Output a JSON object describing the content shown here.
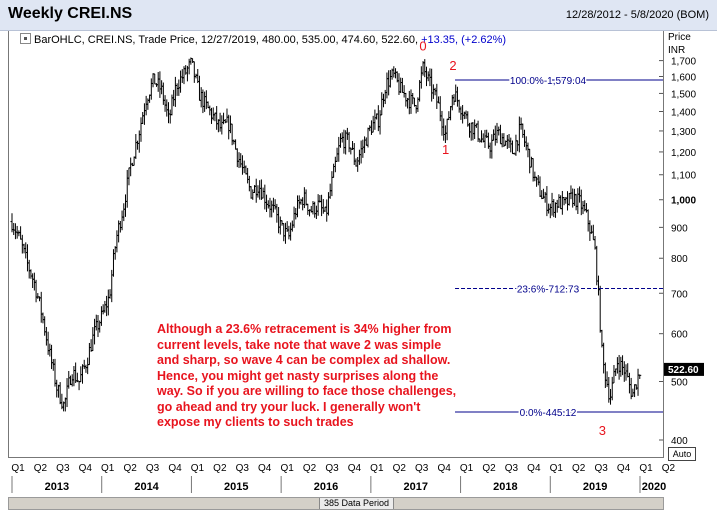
{
  "header": {
    "title": "Weekly CREI.NS",
    "date_range": "12/28/2012 - 5/8/2020 (BOM)"
  },
  "legend": {
    "prefix": "BarOHLC, CREI.NS, Trade Price, 12/27/2019, 480.00, 535.00, 474.60, 522.60, ",
    "change": "+13.35, (+2.62%)"
  },
  "axis": {
    "price_label": "Price",
    "currency_label": "INR",
    "auto_label": "Auto",
    "period_label": "385 Data Period"
  },
  "commentary": "Although a 23.6% retracement is 34% higher from current levels, take note that wave 2 was simple and sharp, so wave 4 can be complex ad shallow. Hence, you might get nasty surprises along the way. So if you are willing to face those challenges, go ahead and try your luck. I generally won't expose my clients to such trades",
  "colors": {
    "bars": "#000000",
    "fib_lines": "#00008b",
    "wave_labels": "#e8141e",
    "commentary": "#e8141e",
    "header_bg": "#dfe6f3"
  },
  "chart_data": {
    "type": "ohlc",
    "scale": "log",
    "ylim": [
      400,
      1750
    ],
    "y_ticks": [
      "400",
      "500",
      "600",
      "700",
      "800",
      "900",
      "1,000",
      "1,100",
      "1,200",
      "1,300",
      "1,400",
      "1,500",
      "1,600",
      "1,700"
    ],
    "y_tick_values": [
      400,
      500,
      600,
      700,
      800,
      900,
      1000,
      1100,
      1200,
      1300,
      1400,
      1500,
      1600,
      1700
    ],
    "last_price": "522.60",
    "last_price_value": 522.6,
    "quarter_labels": [
      "Q1",
      "Q2",
      "Q3",
      "Q4",
      "Q1",
      "Q2",
      "Q3",
      "Q4",
      "Q1",
      "Q2",
      "Q3",
      "Q4",
      "Q1",
      "Q2",
      "Q3",
      "Q4",
      "Q1",
      "Q2",
      "Q3",
      "Q4",
      "Q1",
      "Q2",
      "Q3",
      "Q4",
      "Q1",
      "Q2",
      "Q3",
      "Q4",
      "Q1",
      "Q2"
    ],
    "year_labels": [
      "2013",
      "2014",
      "2015",
      "2016",
      "2017",
      "2018",
      "2019",
      "2020"
    ],
    "fib_levels": [
      {
        "label": "100.0%-1,579.04",
        "value": 1579.04,
        "style": "solid"
      },
      {
        "label": "23.6%-712.73",
        "value": 712.73,
        "style": "dashed"
      },
      {
        "label": "0.0%-445.12",
        "value": 445.12,
        "style": "solid"
      }
    ],
    "wave_labels": [
      {
        "label": "0",
        "date": "2017-08",
        "price": 1766
      },
      {
        "label": "2",
        "date": "2017-12",
        "price": 1640
      },
      {
        "label": "1",
        "date": "2017-11",
        "price": 1190
      },
      {
        "label": "3",
        "date": "2019-08",
        "price": 408
      }
    ],
    "series": [
      {
        "anchors": [
          [
            "2013-01",
            920
          ],
          [
            "2013-02",
            860
          ],
          [
            "2013-03",
            790
          ],
          [
            "2013-04",
            730
          ],
          [
            "2013-05",
            650
          ],
          [
            "2013-06",
            560
          ],
          [
            "2013-07",
            490
          ],
          [
            "2013-08",
            455
          ],
          [
            "2013-09",
            520
          ],
          [
            "2013-10",
            500
          ],
          [
            "2013-11",
            540
          ],
          [
            "2013-12",
            600
          ],
          [
            "2014-01",
            640
          ],
          [
            "2014-02",
            690
          ],
          [
            "2014-03",
            860
          ],
          [
            "2014-04",
            980
          ],
          [
            "2014-05",
            1150
          ],
          [
            "2014-06",
            1290
          ],
          [
            "2014-07",
            1470
          ],
          [
            "2014-08",
            1580
          ],
          [
            "2014-09",
            1520
          ],
          [
            "2014-10",
            1350
          ],
          [
            "2014-11",
            1550
          ],
          [
            "2014-12",
            1610
          ],
          [
            "2015-01",
            1680
          ],
          [
            "2015-02",
            1500
          ],
          [
            "2015-03",
            1430
          ],
          [
            "2015-04",
            1370
          ],
          [
            "2015-05",
            1310
          ],
          [
            "2015-06",
            1340
          ],
          [
            "2015-07",
            1210
          ],
          [
            "2015-08",
            1110
          ],
          [
            "2015-09",
            1030
          ],
          [
            "2015-10",
            1060
          ],
          [
            "2015-11",
            1000
          ],
          [
            "2015-12",
            960
          ],
          [
            "2016-01",
            900
          ],
          [
            "2016-02",
            865
          ],
          [
            "2016-03",
            960
          ],
          [
            "2016-04",
            1010
          ],
          [
            "2016-05",
            960
          ],
          [
            "2016-06",
            980
          ],
          [
            "2016-07",
            940
          ],
          [
            "2016-08",
            1100
          ],
          [
            "2016-09",
            1260
          ],
          [
            "2016-10",
            1250
          ],
          [
            "2016-11",
            1150
          ],
          [
            "2016-12",
            1230
          ],
          [
            "2017-01",
            1320
          ],
          [
            "2017-02",
            1360
          ],
          [
            "2017-03",
            1550
          ],
          [
            "2017-04",
            1610
          ],
          [
            "2017-05",
            1520
          ],
          [
            "2017-06",
            1470
          ],
          [
            "2017-07",
            1430
          ],
          [
            "2017-08",
            1650
          ],
          [
            "2017-09",
            1540
          ],
          [
            "2017-10",
            1440
          ],
          [
            "2017-11",
            1280
          ],
          [
            "2017-12",
            1510
          ],
          [
            "2018-01",
            1430
          ],
          [
            "2018-02",
            1340
          ],
          [
            "2018-03",
            1310
          ],
          [
            "2018-04",
            1250
          ],
          [
            "2018-05",
            1230
          ],
          [
            "2018-06",
            1290
          ],
          [
            "2018-07",
            1250
          ],
          [
            "2018-08",
            1200
          ],
          [
            "2018-09",
            1310
          ],
          [
            "2018-10",
            1200
          ],
          [
            "2018-11",
            1070
          ],
          [
            "2018-12",
            1010
          ],
          [
            "2019-01",
            970
          ],
          [
            "2019-02",
            990
          ],
          [
            "2019-03",
            980
          ],
          [
            "2019-04",
            1010
          ],
          [
            "2019-05",
            990
          ],
          [
            "2019-06",
            930
          ],
          [
            "2019-07",
            830
          ],
          [
            "2019-08",
            540
          ],
          [
            "2019-09",
            470
          ],
          [
            "2019-10",
            540
          ],
          [
            "2019-11",
            520
          ],
          [
            "2019-12",
            475
          ],
          [
            "2020-01",
            522.6
          ]
        ]
      }
    ]
  }
}
